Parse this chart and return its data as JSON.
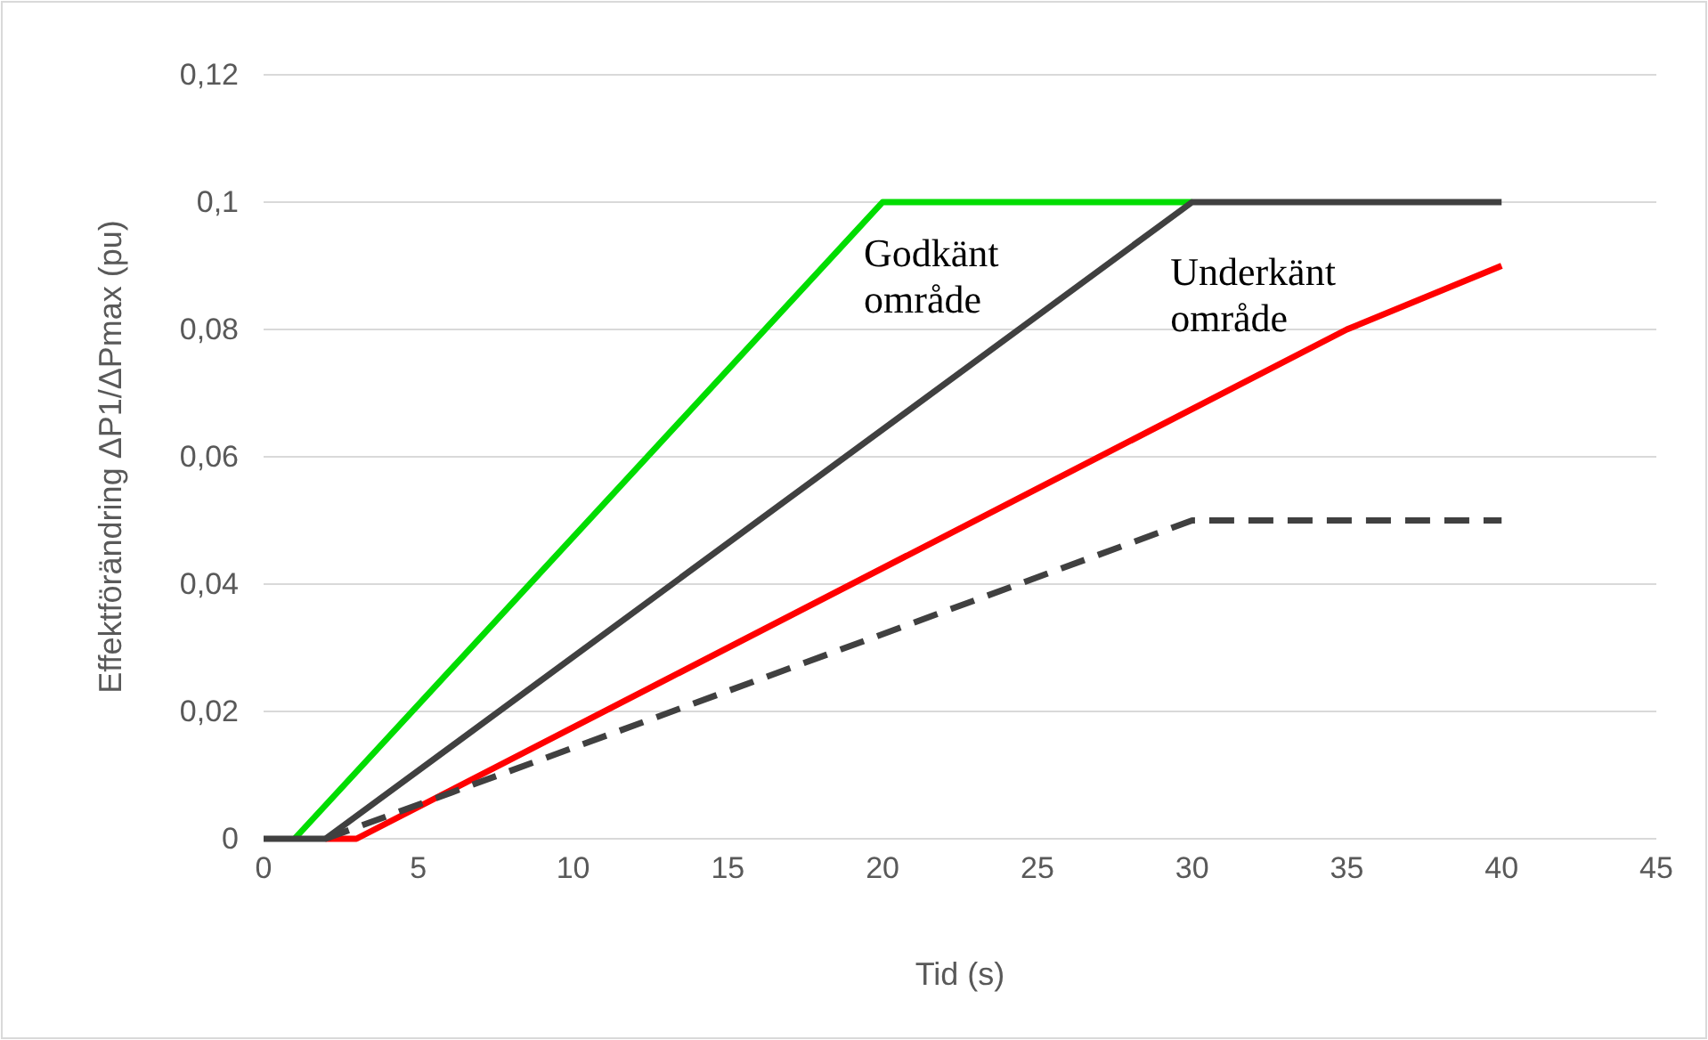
{
  "chart_data": {
    "type": "line",
    "xlabel": "Tid (s)",
    "ylabel": "Effektförändring ΔP1/ΔPmax (pu)",
    "xlim": [
      0,
      45
    ],
    "xticks": [
      0,
      5,
      10,
      15,
      20,
      25,
      30,
      35,
      40,
      45
    ],
    "ylim": [
      0,
      0.12
    ],
    "yticks": [
      {
        "value": 0,
        "label": "0"
      },
      {
        "value": 0.02,
        "label": "0,02"
      },
      {
        "value": 0.04,
        "label": "0,04"
      },
      {
        "value": 0.06,
        "label": "0,06"
      },
      {
        "value": 0.08,
        "label": "0,08"
      },
      {
        "value": 0.1,
        "label": "0,1"
      },
      {
        "value": 0.12,
        "label": "0,12"
      }
    ],
    "grid": "y",
    "series": [
      {
        "color": "#ff0000",
        "x": [
          2,
          3,
          35,
          40
        ],
        "values": [
          0,
          0,
          0.08,
          0.09
        ]
      },
      {
        "color": "#404040",
        "x": [
          2,
          30,
          40
        ],
        "values": [
          0,
          0.05,
          0.05
        ],
        "line_style": "dashed"
      },
      {
        "color": "#00dd00",
        "x": [
          1,
          20,
          30
        ],
        "values": [
          0,
          0.1,
          0.1
        ]
      },
      {
        "color": "#404040",
        "x": [
          0,
          2,
          30,
          40
        ],
        "values": [
          0,
          0,
          0.1,
          0.1
        ]
      }
    ],
    "annotations": [
      "Godkänt\nområde",
      "Underkänt\nområde"
    ]
  }
}
